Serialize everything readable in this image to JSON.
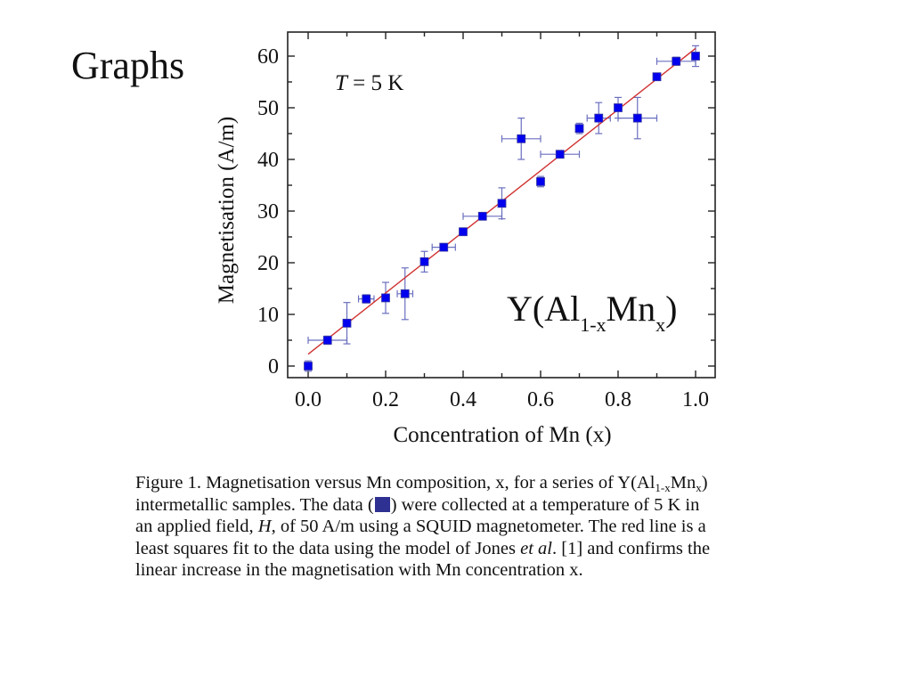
{
  "slide": {
    "title": "Graphs"
  },
  "chart_data": {
    "type": "scatter",
    "title": "",
    "xlabel": "Concentration of Mn (x)",
    "ylabel": "Magnetisation (A/m)",
    "xlim": [
      -0.05,
      1.05
    ],
    "ylim": [
      -2,
      65
    ],
    "xticks": [
      "0.0",
      "0.2",
      "0.4",
      "0.6",
      "0.8",
      "1.0"
    ],
    "xtick_values": [
      0,
      0.2,
      0.4,
      0.6,
      0.8,
      1.0
    ],
    "yticks": [
      "0",
      "10",
      "20",
      "30",
      "40",
      "50",
      "60"
    ],
    "ytick_values": [
      0,
      10,
      20,
      30,
      40,
      50,
      60
    ],
    "grid": false,
    "annotations": {
      "temperature": {
        "italic": "T",
        "rest": " = 5 K"
      },
      "compound": {
        "main1": "Y(Al",
        "sub1": "1-x",
        "main2": "Mn",
        "sub2": "x",
        "main3": ")"
      }
    },
    "series": [
      {
        "name": "Y(Al1-xMnx) data",
        "marker": "square",
        "color": "#0000ee",
        "errorbar_color": "#6a6fbf",
        "points": [
          {
            "x": 0.0,
            "y": 0.0,
            "xerr": 0,
            "yerr": 1.0
          },
          {
            "x": 0.05,
            "y": 5.0,
            "xerr": 0.05,
            "yerr": 0.8
          },
          {
            "x": 0.1,
            "y": 8.3,
            "xerr": 0,
            "yerr": 4.0
          },
          {
            "x": 0.15,
            "y": 13.0,
            "xerr": 0.02,
            "yerr": 0.8
          },
          {
            "x": 0.2,
            "y": 13.2,
            "xerr": 0,
            "yerr": 3.0
          },
          {
            "x": 0.25,
            "y": 14.0,
            "xerr": 0.02,
            "yerr": 5.0
          },
          {
            "x": 0.3,
            "y": 20.2,
            "xerr": 0,
            "yerr": 2.0
          },
          {
            "x": 0.35,
            "y": 23.0,
            "xerr": 0.03,
            "yerr": 0.7
          },
          {
            "x": 0.4,
            "y": 26.0,
            "xerr": 0,
            "yerr": 0
          },
          {
            "x": 0.45,
            "y": 29.0,
            "xerr": 0.05,
            "yerr": 0.6
          },
          {
            "x": 0.5,
            "y": 31.5,
            "xerr": 0,
            "yerr": 3.0
          },
          {
            "x": 0.55,
            "y": 44.0,
            "xerr": 0.05,
            "yerr": 4.0
          },
          {
            "x": 0.6,
            "y": 35.7,
            "xerr": 0,
            "yerr": 1.0
          },
          {
            "x": 0.65,
            "y": 41.0,
            "xerr": 0.05,
            "yerr": 0
          },
          {
            "x": 0.7,
            "y": 46.0,
            "xerr": 0,
            "yerr": 1.0
          },
          {
            "x": 0.75,
            "y": 48.0,
            "xerr": 0.03,
            "yerr": 3.0
          },
          {
            "x": 0.8,
            "y": 50.0,
            "xerr": 0,
            "yerr": 2.0
          },
          {
            "x": 0.85,
            "y": 48.0,
            "xerr": 0.05,
            "yerr": 4.0
          },
          {
            "x": 0.9,
            "y": 56.0,
            "xerr": 0,
            "yerr": 0
          },
          {
            "x": 0.95,
            "y": 59.0,
            "xerr": 0.05,
            "yerr": 0.8
          },
          {
            "x": 1.0,
            "y": 60.0,
            "xerr": 0,
            "yerr": 2.0
          }
        ]
      },
      {
        "name": "Least squares fit",
        "type": "line",
        "color": "#d03030",
        "x": [
          0.0,
          1.0
        ],
        "y": [
          2.3,
          61.5
        ]
      }
    ]
  },
  "caption": {
    "line1_a": "Figure 1. Magnetisation versus Mn composition, x, for a series of Y(Al",
    "line1_sub1": "1-x",
    "line1_b": "Mn",
    "line1_sub2": "x",
    "line1_c": ")",
    "line2_a": "intermetallic samples.  The data (",
    "line2_b": ") were collected at a temperature of 5 K in",
    "line3_a": "an applied field, ",
    "line3_italic": "H",
    "line3_b": ", of 50 A/m using a SQUID magnetometer. The red line is a",
    "line4_a": "least squares fit to the data using the model of Jones ",
    "line4_italic": "et al",
    "line4_b": ". [1] and confirms the",
    "line5": "linear increase in the magnetisation with Mn concentration x."
  }
}
